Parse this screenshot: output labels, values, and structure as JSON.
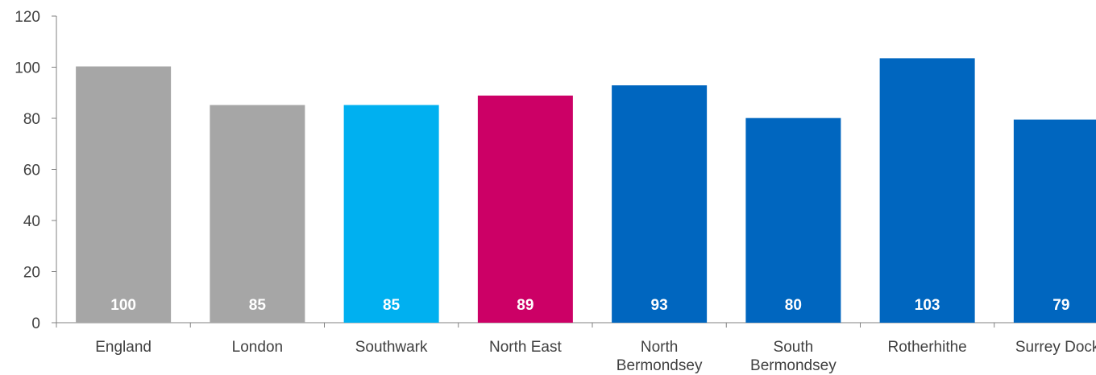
{
  "chart_data": {
    "type": "bar",
    "categories": [
      "England",
      "London",
      "Southwark",
      "North East",
      "North Bermondsey",
      "South Bermondsey",
      "Rotherhithe",
      "Surrey Docks"
    ],
    "category_lines": [
      [
        "England"
      ],
      [
        "London"
      ],
      [
        "Southwark"
      ],
      [
        "North East"
      ],
      [
        "North",
        "Bermondsey"
      ],
      [
        "South",
        "Bermondsey"
      ],
      [
        "Rotherhithe"
      ],
      [
        "Surrey Docks"
      ]
    ],
    "values": [
      100.3,
      85.2,
      85.2,
      88.9,
      92.9,
      80.1,
      103.5,
      79.5
    ],
    "data_labels": [
      "100",
      "85",
      "85",
      "89",
      "93",
      "80",
      "103",
      "79"
    ],
    "bar_colors": [
      "#a6a6a6",
      "#a6a6a6",
      "#00b0f0",
      "#cc0066",
      "#0066bf",
      "#0066bf",
      "#0066bf",
      "#0066bf"
    ],
    "ylim": [
      0,
      120
    ],
    "yticks": [
      0,
      20,
      40,
      60,
      80,
      100,
      120
    ],
    "title": "",
    "xlabel": "",
    "ylabel": "",
    "grid": false,
    "legend": "none",
    "colors": {
      "axis": "#808080",
      "text": "#404040",
      "label_text": "#ffffff"
    }
  }
}
